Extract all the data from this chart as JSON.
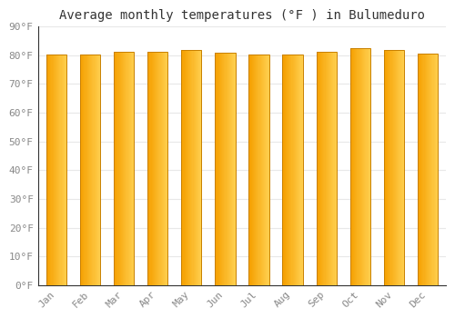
{
  "title": "Average monthly temperatures (°F ) in Bulumeduro",
  "months": [
    "Jan",
    "Feb",
    "Mar",
    "Apr",
    "May",
    "Jun",
    "Jul",
    "Aug",
    "Sep",
    "Oct",
    "Nov",
    "Dec"
  ],
  "values": [
    80.2,
    80.1,
    81.1,
    81.3,
    81.7,
    80.8,
    80.1,
    80.3,
    81.2,
    82.4,
    81.9,
    80.5
  ],
  "bar_color_left": "#F5A000",
  "bar_color_right": "#FFD050",
  "edge_color": "#C88000",
  "background_color": "#ffffff",
  "grid_color": "#e8e8e8",
  "ytick_labels": [
    "0°F",
    "10°F",
    "20°F",
    "30°F",
    "40°F",
    "50°F",
    "60°F",
    "70°F",
    "80°F",
    "90°F"
  ],
  "ytick_values": [
    0,
    10,
    20,
    30,
    40,
    50,
    60,
    70,
    80,
    90
  ],
  "ylim": [
    0,
    90
  ],
  "title_fontsize": 10,
  "tick_fontsize": 8,
  "bar_width": 0.6,
  "n_gradient_steps": 20
}
